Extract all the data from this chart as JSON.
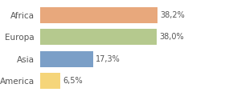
{
  "categories": [
    "Africa",
    "Europa",
    "Asia",
    "America"
  ],
  "values": [
    38.2,
    38.0,
    17.3,
    6.5
  ],
  "labels": [
    "38,2%",
    "38,0%",
    "17,3%",
    "6,5%"
  ],
  "bar_colors": [
    "#e8a87c",
    "#b5c98e",
    "#7b9fc7",
    "#f5d57a"
  ],
  "background_color": "#ffffff",
  "xlim": [
    0,
    47
  ],
  "label_fontsize": 7.0,
  "category_fontsize": 7.5,
  "bar_height": 0.72
}
